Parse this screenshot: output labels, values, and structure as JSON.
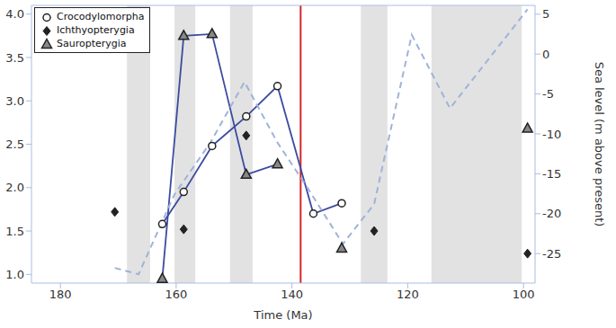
{
  "chart_data": {
    "type": "line",
    "xlabel": "Time (Ma)",
    "y2label": "Sea level (m above present)",
    "xlim": [
      185,
      98
    ],
    "xticks": [
      180,
      160,
      140,
      120,
      100
    ],
    "ylim": [
      0.9,
      4.1
    ],
    "yticks": [
      {
        "value": 1,
        "label": "1.0"
      },
      1.5,
      {
        "value": 2,
        "label": "2.0"
      },
      2.5,
      {
        "value": 3,
        "label": "3.0"
      },
      3.5,
      {
        "value": 4,
        "label": "4.0"
      }
    ],
    "y2lim": [
      -28.7,
      6.1
    ],
    "y2ticks": [
      5,
      0,
      -5,
      -10,
      -15,
      -20,
      -25
    ],
    "legend": "upper left",
    "grid": false,
    "bands": [
      [
        168.5,
        164.5
      ],
      [
        160.3,
        156.7
      ],
      [
        150.7,
        146.8
      ],
      [
        128.1,
        123.5
      ],
      [
        115.9,
        100.3
      ]
    ],
    "reference_line_x": 138.5,
    "x": [
      170.6,
      162.4,
      158.7,
      153.8,
      147.9,
      142.5,
      136.3,
      131.4,
      125.8,
      99.3
    ],
    "series": [
      {
        "name": "Crocodylomorpha",
        "color": "#3c4ba0",
        "marker": "circle",
        "line_style": "solid",
        "values": [
          null,
          1.58,
          1.95,
          2.48,
          2.82,
          3.17,
          1.7,
          1.82,
          null,
          null
        ]
      },
      {
        "name": "Ichthyopterygia",
        "color": "#222222",
        "marker": "diamond",
        "line_style": "none",
        "values": [
          1.72,
          null,
          1.52,
          null,
          2.6,
          null,
          null,
          null,
          1.5,
          1.24
        ]
      },
      {
        "name": "Sauropterygia",
        "color": "#3c4ba0",
        "marker": "triangle",
        "line_style": "solid",
        "values": [
          null,
          0.95,
          3.75,
          3.77,
          2.15,
          2.27,
          null,
          1.3,
          null,
          2.68
        ]
      },
      {
        "color": "#9fb3d9",
        "axis": "y2",
        "line_style": "dashed",
        "marker": "none",
        "x": [
          170.6,
          166.5,
          160.3,
          154.1,
          148.2,
          142.5,
          137.1,
          131.2,
          125.8,
          119.3,
          112.7,
          99.3
        ],
        "values": [
          -26.8,
          -27.6,
          -17.6,
          -11.1,
          -3.5,
          -11.1,
          -17.0,
          -23.8,
          -18.8,
          2.4,
          -6.8,
          5.6
        ]
      }
    ]
  }
}
